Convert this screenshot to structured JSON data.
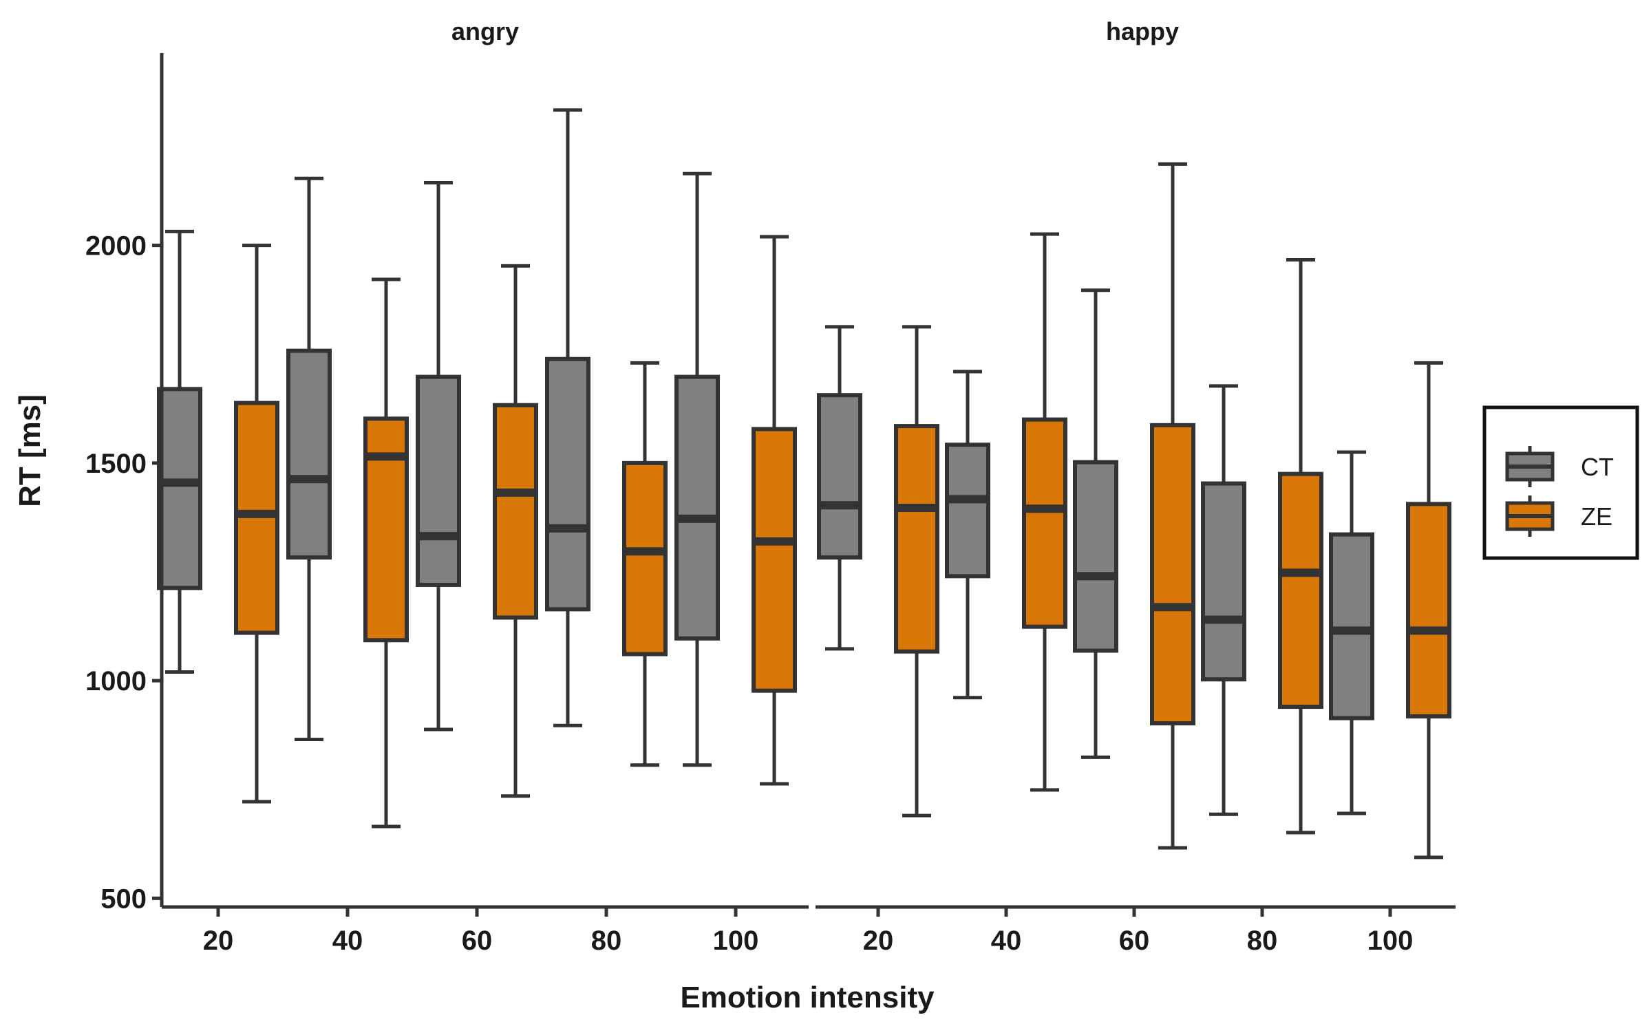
{
  "chart_data": {
    "type": "boxplot",
    "xlabel": "Emotion intensity",
    "ylabel": "RT [ms]",
    "ylim": [
      480,
      2450
    ],
    "yticks": [
      500,
      1000,
      1500,
      2000
    ],
    "legend": {
      "position": "right",
      "entries": [
        "CT",
        "ZE"
      ]
    },
    "colors": {
      "CT": "#808080",
      "ZE": "#d97706",
      "outline": "#333333"
    },
    "grid": false,
    "facets": [
      {
        "label": "angry",
        "categories": [
          "20",
          "40",
          "60",
          "80",
          "100"
        ],
        "series": [
          {
            "name": "CT",
            "boxes": [
              {
                "min": 1020,
                "q1": 1213,
                "median": 1455,
                "q3": 1670,
                "max": 2032
              },
              {
                "min": 865,
                "q1": 1283,
                "median": 1463,
                "q3": 1758,
                "max": 2154
              },
              {
                "min": 888,
                "q1": 1220,
                "median": 1332,
                "q3": 1698,
                "max": 2144
              },
              {
                "min": 897,
                "q1": 1164,
                "median": 1350,
                "q3": 1739,
                "max": 2311
              },
              {
                "min": 806,
                "q1": 1097,
                "median": 1372,
                "q3": 1698,
                "max": 2165
              }
            ]
          },
          {
            "name": "ZE",
            "boxes": [
              {
                "min": 722,
                "q1": 1110,
                "median": 1383,
                "q3": 1638,
                "max": 2000
              },
              {
                "min": 665,
                "q1": 1093,
                "median": 1515,
                "q3": 1602,
                "max": 1922
              },
              {
                "min": 735,
                "q1": 1145,
                "median": 1432,
                "q3": 1633,
                "max": 1953
              },
              {
                "min": 806,
                "q1": 1061,
                "median": 1297,
                "q3": 1500,
                "max": 1730
              },
              {
                "min": 763,
                "q1": 977,
                "median": 1320,
                "q3": 1578,
                "max": 2020
              }
            ]
          }
        ]
      },
      {
        "label": "happy",
        "categories": [
          "20",
          "40",
          "60",
          "80",
          "100"
        ],
        "series": [
          {
            "name": "CT",
            "boxes": [
              {
                "min": 1073,
                "q1": 1283,
                "median": 1403,
                "q3": 1656,
                "max": 1813
              },
              {
                "min": 961,
                "q1": 1240,
                "median": 1417,
                "q3": 1542,
                "max": 1710
              },
              {
                "min": 824,
                "q1": 1069,
                "median": 1240,
                "q3": 1502,
                "max": 1897
              },
              {
                "min": 693,
                "q1": 1003,
                "median": 1140,
                "q3": 1453,
                "max": 1677
              },
              {
                "min": 695,
                "q1": 914,
                "median": 1115,
                "q3": 1336,
                "max": 1525
              }
            ]
          },
          {
            "name": "ZE",
            "boxes": [
              {
                "min": 690,
                "q1": 1067,
                "median": 1397,
                "q3": 1585,
                "max": 1813
              },
              {
                "min": 749,
                "q1": 1124,
                "median": 1395,
                "q3": 1600,
                "max": 2026
              },
              {
                "min": 616,
                "q1": 902,
                "median": 1169,
                "q3": 1587,
                "max": 2187
              },
              {
                "min": 651,
                "q1": 940,
                "median": 1248,
                "q3": 1475,
                "max": 1967
              },
              {
                "min": 594,
                "q1": 918,
                "median": 1115,
                "q3": 1406,
                "max": 1730
              }
            ]
          }
        ]
      }
    ]
  }
}
